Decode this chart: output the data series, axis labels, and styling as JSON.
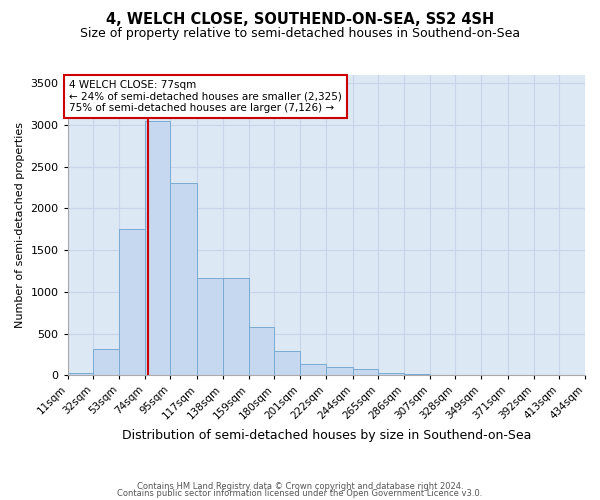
{
  "title": "4, WELCH CLOSE, SOUTHEND-ON-SEA, SS2 4SH",
  "subtitle": "Size of property relative to semi-detached houses in Southend-on-Sea",
  "xlabel": "Distribution of semi-detached houses by size in Southend-on-Sea",
  "ylabel": "Number of semi-detached properties",
  "footer_line1": "Contains HM Land Registry data © Crown copyright and database right 2024.",
  "footer_line2": "Contains public sector information licensed under the Open Government Licence v3.0.",
  "annotation_title": "4 WELCH CLOSE: 77sqm",
  "annotation_line1": "← 24% of semi-detached houses are smaller (2,325)",
  "annotation_line2": "75% of semi-detached houses are larger (7,126) →",
  "bin_edges": [
    11,
    32,
    53,
    74,
    95,
    117,
    138,
    159,
    180,
    201,
    222,
    244,
    265,
    286,
    307,
    328,
    349,
    371,
    392,
    413,
    434
  ],
  "bar_heights": [
    30,
    310,
    1750,
    3050,
    2300,
    1170,
    1170,
    580,
    295,
    130,
    95,
    75,
    30,
    10,
    8,
    5,
    3,
    2,
    2,
    1
  ],
  "tick_labels": [
    "11sqm",
    "32sqm",
    "53sqm",
    "74sqm",
    "95sqm",
    "117sqm",
    "138sqm",
    "159sqm",
    "180sqm",
    "201sqm",
    "222sqm",
    "244sqm",
    "265sqm",
    "286sqm",
    "307sqm",
    "328sqm",
    "349sqm",
    "371sqm",
    "392sqm",
    "413sqm",
    "434sqm"
  ],
  "bar_color": "#c5d8f0",
  "bar_edge_color": "#7aaad4",
  "vline_x": 77,
  "vline_color": "#cc0000",
  "annotation_border_color": "#cc0000",
  "ylim": [
    0,
    3600
  ],
  "yticks": [
    0,
    500,
    1000,
    1500,
    2000,
    2500,
    3000,
    3500
  ],
  "grid_color": "#c8d4e8",
  "bg_color": "#dde8f5",
  "title_fontsize": 10.5,
  "subtitle_fontsize": 9,
  "ylabel_fontsize": 8,
  "xlabel_fontsize": 9,
  "tick_fontsize": 7.5,
  "footer_fontsize": 6
}
